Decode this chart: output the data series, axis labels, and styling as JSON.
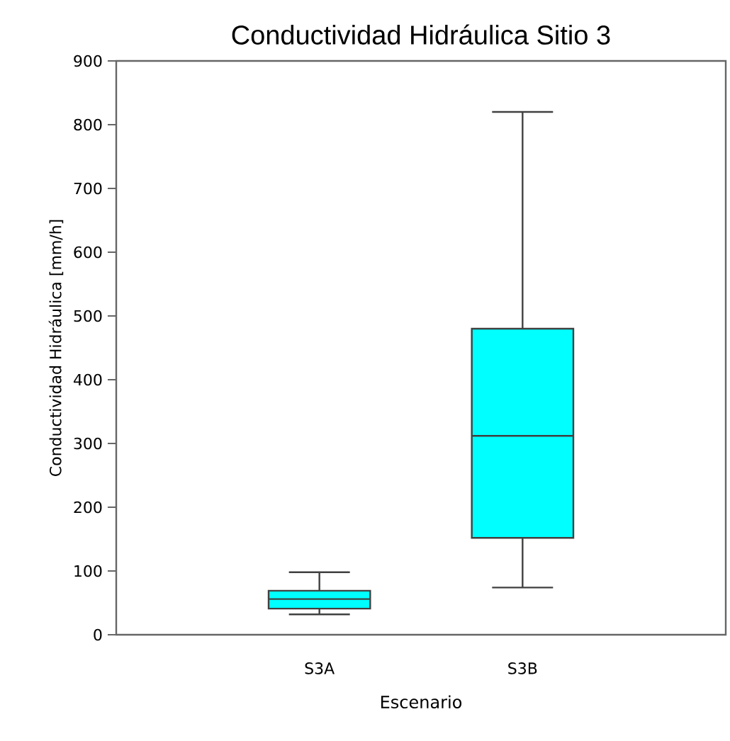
{
  "chart_data": {
    "type": "box",
    "title": "Conductividad Hidráulica Sitio 3",
    "xlabel": "Escenario",
    "ylabel": "Conductividad Hidráulica [mm/h]",
    "categories": [
      "S3A",
      "S3B"
    ],
    "boxes": [
      {
        "low": 32,
        "q1": 41,
        "median": 56,
        "q3": 69,
        "high": 98
      },
      {
        "low": 74,
        "q1": 152,
        "median": 312,
        "q3": 480,
        "high": 820
      }
    ],
    "color": "#00ffff",
    "ylim": [
      0,
      900
    ],
    "yticks": [
      0,
      100,
      200,
      300,
      400,
      500,
      600,
      700,
      800,
      900
    ]
  }
}
